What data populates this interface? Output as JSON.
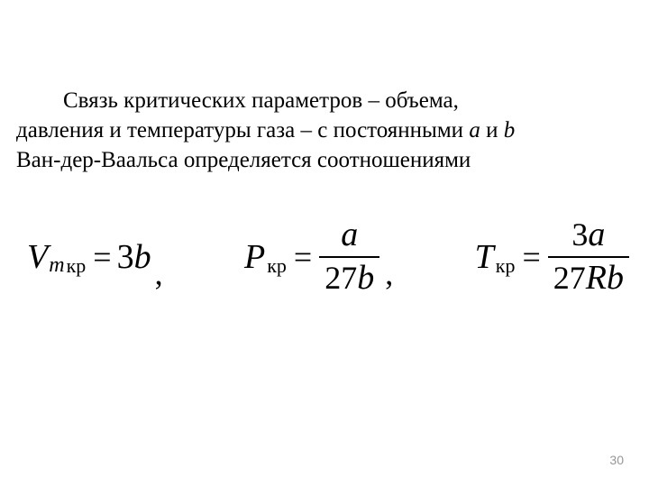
{
  "paragraph": {
    "line1_pre": "Связь критических параметров ",
    "dash": "–",
    "line1_post": " объема,",
    "line2_pre": "давления и температуры газа ",
    "line2_mid": " с постоянными ",
    "a": "a",
    "and": " и ",
    "b": "b",
    "line3": "Ван-дер-Ваальса определяется соотношениями"
  },
  "equations": {
    "eq1": {
      "V": "V",
      "m": "m",
      "kr": " кр",
      "eq": "=",
      "rhs_num": "3",
      "rhs_var": "b",
      "comma": ","
    },
    "eq2": {
      "P": "P",
      "kr": "кр",
      "eq": "=",
      "top_var": "a",
      "bot_num": "27",
      "bot_var": "b",
      "comma": ","
    },
    "eq3": {
      "T": "T",
      "kr": "кр",
      "eq": "=",
      "top_num": "3",
      "top_var": "a",
      "bot_num": "27",
      "bot_R": "R",
      "bot_b": "b"
    }
  },
  "page_number": "30",
  "colors": {
    "text": "#000000",
    "page_num": "#969696",
    "background": "#ffffff"
  },
  "fonts": {
    "body": "Times New Roman",
    "body_size_pt": 19,
    "eq_size_pt": 28
  }
}
